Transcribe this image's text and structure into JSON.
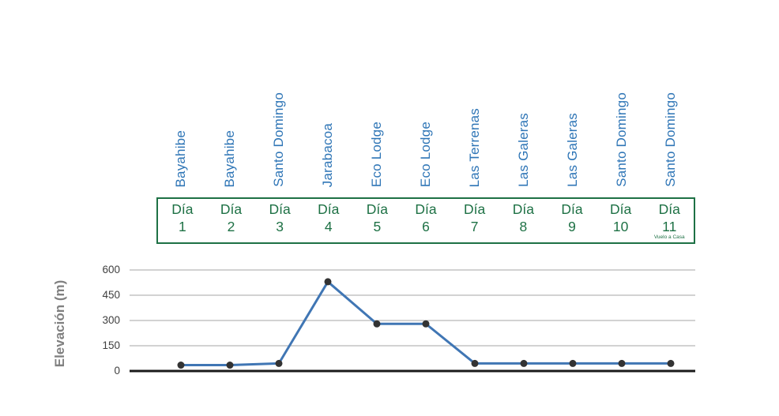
{
  "colors": {
    "location_label": "#2E75B6",
    "day_label": "#1E7145",
    "day_box_border": "#1E7145",
    "line": "#4076B4",
    "marker": "#333333",
    "y_axis_title": "#808080",
    "tick_label": "#404040",
    "gridline": "#A6A6A6",
    "baseline": "#1A1A1A"
  },
  "columns": [
    {
      "location": "Bayahibe",
      "day_word": "Día",
      "day_number": "1",
      "note": ""
    },
    {
      "location": "Bayahibe",
      "day_word": "Día",
      "day_number": "2",
      "note": ""
    },
    {
      "location": "Santo Domingo",
      "day_word": "Día",
      "day_number": "3",
      "note": ""
    },
    {
      "location": "Jarabacoa",
      "day_word": "Día",
      "day_number": "4",
      "note": ""
    },
    {
      "location": "Eco Lodge",
      "day_word": "Día",
      "day_number": "5",
      "note": ""
    },
    {
      "location": "Eco Lodge",
      "day_word": "Día",
      "day_number": "6",
      "note": ""
    },
    {
      "location": "Las Terrenas",
      "day_word": "Día",
      "day_number": "7",
      "note": ""
    },
    {
      "location": "Las Galeras",
      "day_word": "Día",
      "day_number": "8",
      "note": ""
    },
    {
      "location": "Las Galeras",
      "day_word": "Día",
      "day_number": "9",
      "note": ""
    },
    {
      "location": "Santo Domingo",
      "day_word": "Día",
      "day_number": "10",
      "note": ""
    },
    {
      "location": "Santo Domingo",
      "day_word": "Día",
      "day_number": "11",
      "note": "Vuelo a Casa"
    }
  ],
  "chart_data": {
    "type": "line",
    "title": "",
    "ylabel": "Elevación (m)",
    "xlabel": "",
    "ylim": [
      0,
      600
    ],
    "yticks": [
      0,
      150,
      300,
      450,
      600
    ],
    "grid": "horizontal",
    "legend": "none",
    "categories": [
      "Día 1",
      "Día 2",
      "Día 3",
      "Día 4",
      "Día 5",
      "Día 6",
      "Día 7",
      "Día 8",
      "Día 9",
      "Día 10",
      "Día 11"
    ],
    "locations": [
      "Bayahibe",
      "Bayahibe",
      "Santo Domingo",
      "Jarabacoa",
      "Eco Lodge",
      "Eco Lodge",
      "Las Terrenas",
      "Las Galeras",
      "Las Galeras",
      "Santo Domingo",
      "Santo Domingo"
    ],
    "series": [
      {
        "name": "Elevación (m)",
        "values": [
          35,
          35,
          45,
          530,
          280,
          280,
          45,
          45,
          45,
          45,
          45
        ]
      }
    ],
    "annotations": [
      {
        "category": "Día 11",
        "text": "Vuelo a Casa"
      }
    ]
  }
}
